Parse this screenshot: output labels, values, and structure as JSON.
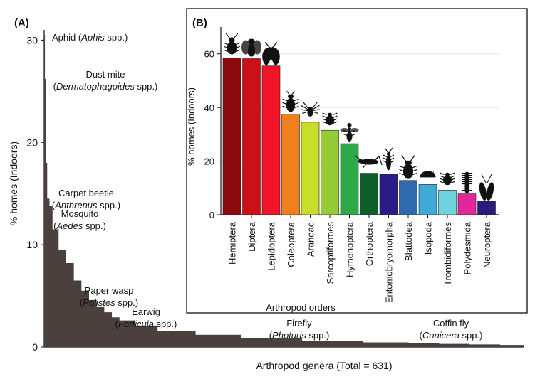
{
  "panels": {
    "a": "(A)",
    "b": "(B)"
  },
  "chart_data": [
    {
      "type": "area",
      "panel": "(A)",
      "xlabel": "Arthropod genera (Total = 631)",
      "ylabel": "% homes (Indoors)",
      "ylim": [
        0,
        31
      ],
      "yticks": [
        0,
        10,
        20,
        30
      ],
      "total_genera": 631,
      "color": "#4a413f",
      "x": [
        1,
        2,
        3,
        5,
        8,
        12,
        20,
        30,
        40,
        50,
        60,
        70,
        80,
        90,
        100,
        120,
        150,
        200,
        260,
        340,
        420,
        480,
        520,
        560,
        600,
        631
      ],
      "values": [
        30.5,
        26.2,
        18.0,
        14.5,
        13.8,
        11.5,
        9.5,
        8.2,
        6.5,
        5.5,
        4.6,
        3.9,
        3.4,
        2.9,
        2.6,
        2.1,
        1.6,
        1.2,
        0.9,
        0.6,
        0.45,
        0.35,
        0.3,
        0.25,
        0.2,
        0.15
      ],
      "annotations": [
        {
          "common": "Aphid",
          "genus": "Aphis",
          "suffix": "spp."
        },
        {
          "common": "Dust mite",
          "genus": "Dermatophagoides",
          "suffix": "spp."
        },
        {
          "common": "Carpet beetle",
          "genus": "Anthrenus",
          "suffix": "spp."
        },
        {
          "common": "Mosquito",
          "genus": "Aedes",
          "suffix": "spp."
        },
        {
          "common": "Paper wasp",
          "genus": "Polistes",
          "suffix": "spp."
        },
        {
          "common": "Earwig",
          "genus": "Forficula",
          "suffix": "spp."
        },
        {
          "common": "Firefly",
          "genus": "Photuris",
          "suffix": "spp."
        },
        {
          "common": "Coffin fly",
          "genus": "Conicera",
          "suffix": "spp."
        }
      ]
    },
    {
      "type": "bar",
      "panel": "(B)",
      "xlabel": "Arthropod orders",
      "ylabel": "% homes (Indoors)",
      "ylim": [
        0,
        70
      ],
      "yticks": [
        0,
        20,
        40,
        60
      ],
      "grid": true,
      "categories": [
        "Hemiptera",
        "Diptera",
        "Lepidoptera",
        "Coleoptera",
        "Araneae",
        "Sarcoptiformes",
        "Hymenoptera",
        "Orthoptera",
        "Entomobryomorpha",
        "Blattodea",
        "Isopoda",
        "Trombidiformes",
        "Polydesmida",
        "Neuroptera"
      ],
      "values": [
        58.5,
        58.2,
        55.5,
        37.5,
        34.5,
        31.5,
        26.5,
        15.5,
        15.3,
        12.8,
        11.3,
        9.2,
        7.8,
        5.0
      ],
      "colors": [
        "#8b0a10",
        "#cc1018",
        "#f3142a",
        "#f07f1e",
        "#c9dd2b",
        "#95cb37",
        "#2ea94a",
        "#0f5f2a",
        "#2a1c86",
        "#2f6aae",
        "#3fa9d8",
        "#6fd3e0",
        "#e0289b",
        "#2a1a7a"
      ],
      "icons": [
        "aphid-icon",
        "fly-icon",
        "moth-icon",
        "beetle-icon",
        "spider-icon",
        "mite-icon",
        "wasp-icon",
        "cricket-icon",
        "springtail-icon",
        "cockroach-icon",
        "woodlouse-icon",
        "mite-icon",
        "millipede-icon",
        "lacewing-icon"
      ]
    }
  ]
}
